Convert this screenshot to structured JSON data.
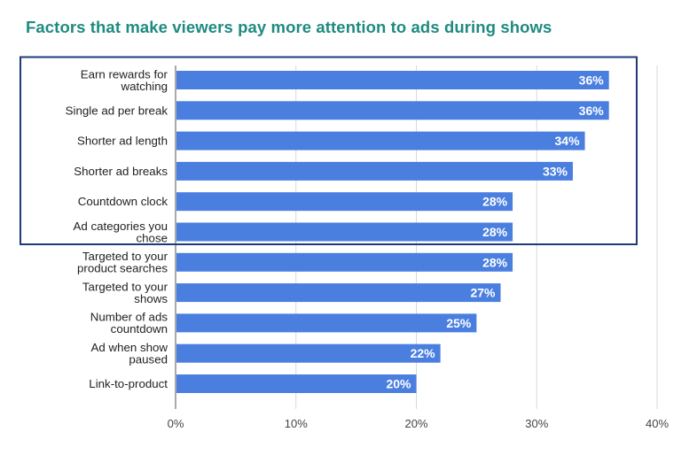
{
  "title": "Factors that make viewers pay more attention to ads during shows",
  "colors": {
    "title": "#1f8a80",
    "bar": "#4a7fe0",
    "highlight_box": "#1e3a7a",
    "grid": "#d9d9d9"
  },
  "chart_data": {
    "type": "bar",
    "orientation": "horizontal",
    "title": "Factors that make viewers pay more attention to ads during shows",
    "xlabel": "",
    "ylabel": "",
    "xlim": [
      0,
      40
    ],
    "x_ticks": [
      "0%",
      "10%",
      "20%",
      "30%",
      "40%"
    ],
    "grid": true,
    "categories": [
      [
        "Earn rewards for",
        "watching"
      ],
      [
        "Single ad per break"
      ],
      [
        "Shorter ad length"
      ],
      [
        "Shorter ad breaks"
      ],
      [
        "Countdown clock"
      ],
      [
        "Ad categories you",
        "chose"
      ],
      [
        "Targeted to your",
        "product searches"
      ],
      [
        "Targeted to your",
        "shows"
      ],
      [
        "Number of ads",
        "countdown"
      ],
      [
        "Ad when show",
        "paused"
      ],
      [
        "Link-to-product"
      ]
    ],
    "values": [
      36,
      36,
      34,
      33,
      28,
      28,
      28,
      27,
      25,
      22,
      20
    ],
    "data_labels": [
      "36%",
      "36%",
      "34%",
      "33%",
      "28%",
      "28%",
      "28%",
      "27%",
      "25%",
      "22%",
      "20%"
    ],
    "highlight": {
      "first_category_index": 0,
      "last_category_index": 5,
      "style": "outlined box"
    }
  }
}
